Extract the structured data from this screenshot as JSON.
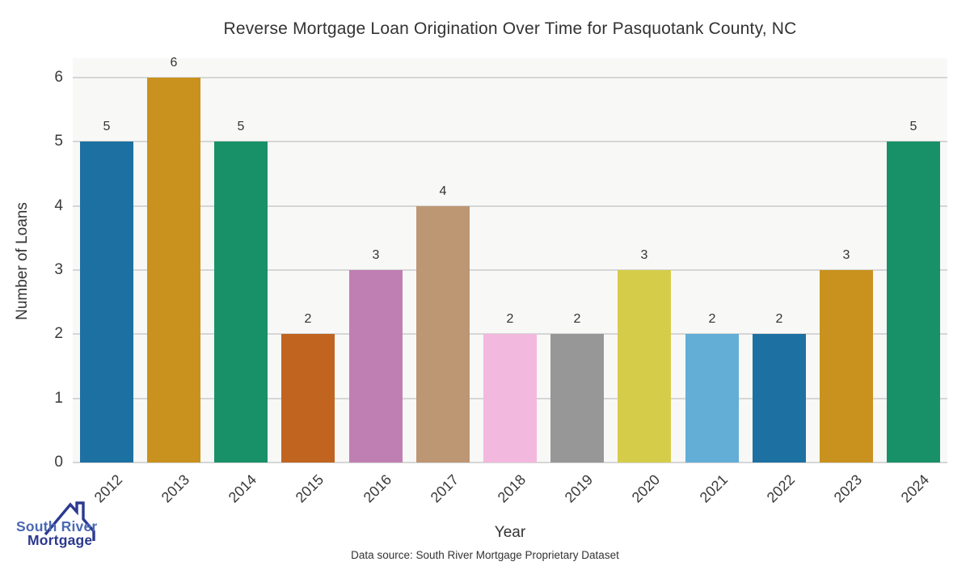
{
  "title": "Reverse Mortgage Loan Origination Over Time for Pasquotank County, NC",
  "chart_data": {
    "type": "bar",
    "title": "Reverse Mortgage Loan Origination Over Time for Pasquotank County, NC",
    "categories": [
      "2012",
      "2013",
      "2014",
      "2015",
      "2016",
      "2017",
      "2018",
      "2019",
      "2020",
      "2021",
      "2022",
      "2023",
      "2024"
    ],
    "values": [
      5,
      6,
      5,
      2,
      3,
      4,
      2,
      2,
      3,
      2,
      2,
      3,
      5
    ],
    "bar_colors": [
      "#1d70a2",
      "#c9921e",
      "#189168",
      "#c06420",
      "#c07fb3",
      "#bd9674",
      "#f3b8dd",
      "#979797",
      "#d5cd4a",
      "#63aed7",
      "#1d70a2",
      "#c9921e",
      "#189168"
    ],
    "xlabel": "Year",
    "ylabel": "Number of Loans",
    "yticks": [
      0,
      1,
      2,
      3,
      4,
      5,
      6
    ],
    "ylim": [
      0,
      6.3
    ],
    "grid": "horizontal",
    "legend": "none",
    "value_labels": true,
    "plot_bg_color": "#f8f8f7",
    "grid_color": "#d6d6d6",
    "text_color": "#3a3a3a"
  },
  "footer": {
    "data_source": "Data source: South River Mortgage Proprietary Dataset"
  },
  "logo": {
    "line1": "South River",
    "line2": "Mortgage",
    "line1_color": "#4a69b2",
    "line2_color": "#2b3990",
    "roof_color": "#2b3990"
  }
}
